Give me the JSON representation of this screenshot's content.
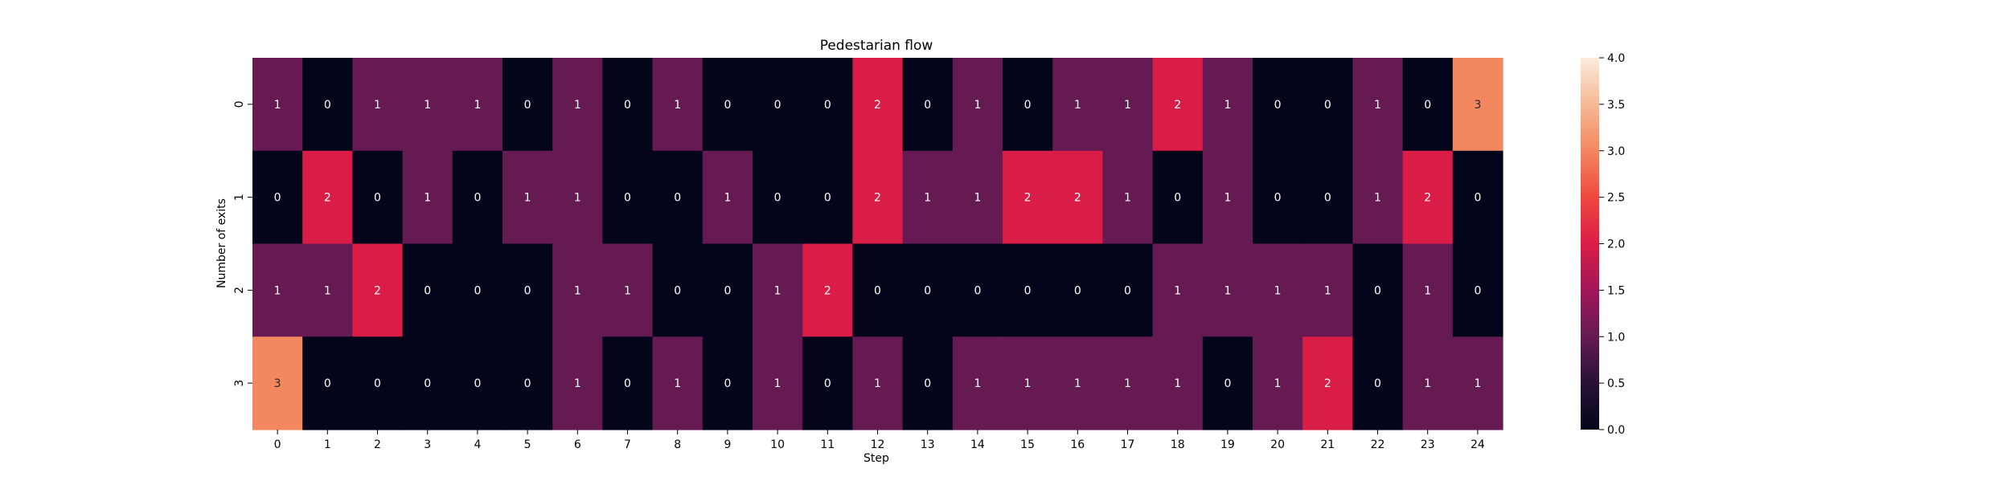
{
  "chart_data": {
    "type": "heatmap",
    "title": "Pedestarian flow",
    "xlabel": "Step",
    "ylabel": "Number of exits",
    "x_categories": [
      "0",
      "1",
      "2",
      "3",
      "4",
      "5",
      "6",
      "7",
      "8",
      "9",
      "10",
      "11",
      "12",
      "13",
      "14",
      "15",
      "16",
      "17",
      "18",
      "19",
      "20",
      "21",
      "22",
      "23",
      "24"
    ],
    "y_categories": [
      "0",
      "1",
      "2",
      "3"
    ],
    "values": [
      [
        1,
        0,
        1,
        1,
        1,
        0,
        1,
        0,
        1,
        0,
        0,
        0,
        2,
        0,
        1,
        0,
        1,
        1,
        2,
        1,
        0,
        0,
        1,
        0,
        3
      ],
      [
        0,
        2,
        0,
        1,
        0,
        1,
        1,
        0,
        0,
        1,
        0,
        0,
        2,
        1,
        1,
        2,
        2,
        1,
        0,
        1,
        0,
        0,
        1,
        2,
        0
      ],
      [
        1,
        1,
        2,
        0,
        0,
        0,
        1,
        1,
        0,
        0,
        1,
        2,
        0,
        0,
        0,
        0,
        0,
        0,
        1,
        1,
        1,
        1,
        0,
        1,
        0
      ],
      [
        3,
        0,
        0,
        0,
        0,
        0,
        1,
        0,
        1,
        0,
        1,
        0,
        1,
        0,
        1,
        1,
        1,
        1,
        1,
        0,
        1,
        2,
        0,
        1,
        1
      ]
    ],
    "colorbar": {
      "min": 0,
      "max": 4,
      "ticks": [
        "0.0",
        "0.5",
        "1.0",
        "1.5",
        "2.0",
        "2.5",
        "3.0",
        "3.5",
        "4.0"
      ],
      "colormap": "rocket"
    },
    "annotations": true,
    "grid": false
  }
}
